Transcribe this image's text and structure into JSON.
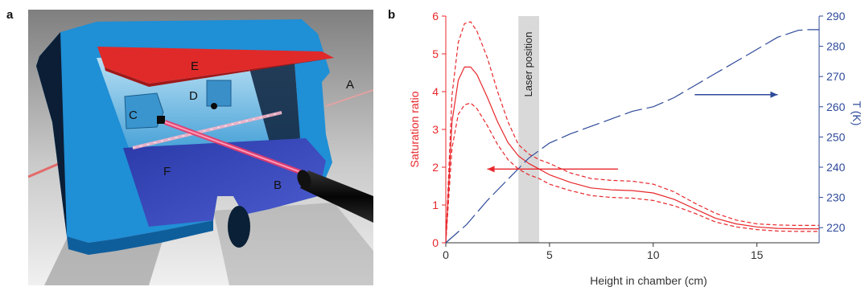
{
  "figure": {
    "panel_a_label": "a",
    "panel_b_label": "b",
    "illustration_labels": [
      "A",
      "B",
      "C",
      "D",
      "E",
      "F"
    ]
  },
  "colors": {
    "saturation": "#e8272b",
    "temperature": "#2e4a9a",
    "chamber_blue": "#1f8fd6",
    "laser_region": "#d9d9d9"
  },
  "chart_data": {
    "type": "line",
    "xlabel": "Height in chamber (cm)",
    "ylabel_left": "Saturation ratio",
    "ylabel_right": "T (K)",
    "annotation": "Laser position",
    "xlim": [
      0,
      18
    ],
    "ylim_left": [
      0,
      6
    ],
    "ylim_right": [
      215,
      290
    ],
    "x_ticks": [
      0,
      5,
      10,
      15
    ],
    "y_ticks_left": [
      0,
      1,
      2,
      3,
      4,
      5,
      6
    ],
    "y_ticks_right": [
      220,
      230,
      240,
      250,
      260,
      270,
      280,
      290
    ],
    "laser_band": [
      3.5,
      4.5
    ],
    "series": [
      {
        "axis": "left",
        "style": "solid",
        "x": [
          0,
          0.3,
          0.6,
          0.9,
          1.2,
          1.5,
          2,
          2.5,
          3,
          3.5,
          4,
          4.5,
          5,
          6,
          7,
          8,
          9,
          10,
          11,
          12,
          13,
          14,
          15,
          16,
          17,
          18
        ],
        "y": [
          0,
          3.2,
          4.3,
          4.65,
          4.65,
          4.45,
          3.85,
          3.2,
          2.65,
          2.3,
          2.1,
          1.95,
          1.8,
          1.6,
          1.45,
          1.4,
          1.38,
          1.32,
          1.15,
          0.9,
          0.65,
          0.5,
          0.42,
          0.38,
          0.37,
          0.37
        ]
      },
      {
        "axis": "left",
        "style": "dashed",
        "x": [
          0,
          0.3,
          0.6,
          0.9,
          1.2,
          1.5,
          2,
          2.5,
          3,
          3.5,
          4,
          4.5,
          5,
          6,
          7,
          8,
          9,
          10,
          11,
          12,
          13,
          14,
          15,
          16,
          17,
          18
        ],
        "y": [
          0,
          3.9,
          5.3,
          5.8,
          5.85,
          5.6,
          4.9,
          4.0,
          3.2,
          2.6,
          2.35,
          2.2,
          2.1,
          1.85,
          1.7,
          1.65,
          1.63,
          1.55,
          1.35,
          1.05,
          0.78,
          0.6,
          0.5,
          0.47,
          0.46,
          0.46
        ]
      },
      {
        "axis": "left",
        "style": "dashed",
        "x": [
          0,
          0.3,
          0.6,
          0.9,
          1.2,
          1.5,
          2,
          2.5,
          3,
          3.5,
          4,
          4.5,
          5,
          6,
          7,
          8,
          9,
          10,
          11,
          12,
          13,
          14,
          15,
          16,
          17,
          18
        ],
        "y": [
          0,
          2.5,
          3.4,
          3.65,
          3.7,
          3.55,
          3.1,
          2.6,
          2.2,
          1.95,
          1.8,
          1.7,
          1.55,
          1.38,
          1.25,
          1.2,
          1.18,
          1.12,
          0.98,
          0.78,
          0.55,
          0.42,
          0.35,
          0.31,
          0.3,
          0.3
        ]
      },
      {
        "axis": "right",
        "style": "longdash",
        "x": [
          0,
          1,
          2,
          3,
          4,
          5,
          6,
          7,
          8,
          9,
          10,
          11,
          12,
          13,
          14,
          15,
          16,
          17,
          17.5,
          18
        ],
        "y": [
          215,
          221,
          229,
          236,
          243,
          248,
          251,
          253.5,
          256,
          258.5,
          260,
          263,
          267,
          271,
          275,
          279,
          283,
          285.3,
          285.5,
          285.5
        ]
      }
    ],
    "arrows": [
      {
        "axis": "left",
        "x_from": 8.3,
        "x_to": 2.0,
        "y": 1.95,
        "color_key": "saturation"
      },
      {
        "axis": "right",
        "x_from": 12.0,
        "x_to": 16.0,
        "y": 264,
        "color_key": "temperature"
      }
    ]
  }
}
